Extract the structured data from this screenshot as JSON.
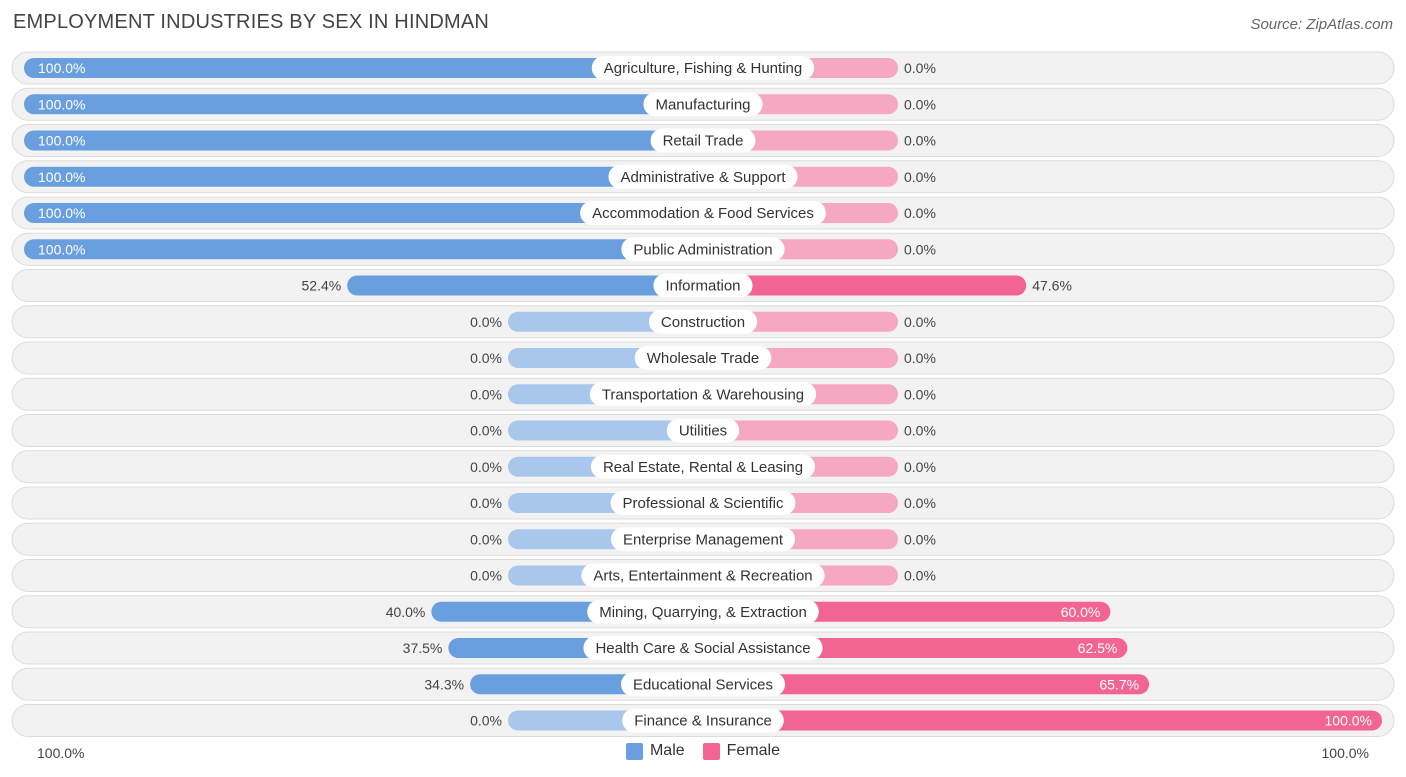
{
  "header": {
    "title": "EMPLOYMENT INDUSTRIES BY SEX IN HINDMAN",
    "source": "Source: ZipAtlas.com"
  },
  "colors": {
    "male_strong": "#6a9fdf",
    "male_light": "#a9c7ec",
    "female_strong": "#f26593",
    "female_light": "#f6a7c1",
    "row_bg": "#f2f2f2",
    "row_border": "#dcdcdc"
  },
  "chart_data": {
    "type": "bar",
    "orientation": "horizontal-diverging",
    "title": "EMPLOYMENT INDUSTRIES BY SEX IN HINDMAN",
    "categories": [
      "Agriculture, Fishing & Hunting",
      "Manufacturing",
      "Retail Trade",
      "Administrative & Support",
      "Accommodation & Food Services",
      "Public Administration",
      "Information",
      "Construction",
      "Wholesale Trade",
      "Transportation & Warehousing",
      "Utilities",
      "Real Estate, Rental & Leasing",
      "Professional & Scientific",
      "Enterprise Management",
      "Arts, Entertainment & Recreation",
      "Mining, Quarrying, & Extraction",
      "Health Care & Social Assistance",
      "Educational Services",
      "Finance & Insurance"
    ],
    "series": [
      {
        "name": "Male",
        "values": [
          100.0,
          100.0,
          100.0,
          100.0,
          100.0,
          100.0,
          52.4,
          0.0,
          0.0,
          0.0,
          0.0,
          0.0,
          0.0,
          0.0,
          0.0,
          40.0,
          37.5,
          34.3,
          0.0
        ],
        "labels": [
          "100.0%",
          "100.0%",
          "100.0%",
          "100.0%",
          "100.0%",
          "100.0%",
          "52.4%",
          "0.0%",
          "0.0%",
          "0.0%",
          "0.0%",
          "0.0%",
          "0.0%",
          "0.0%",
          "0.0%",
          "40.0%",
          "37.5%",
          "34.3%",
          "0.0%"
        ]
      },
      {
        "name": "Female",
        "values": [
          0.0,
          0.0,
          0.0,
          0.0,
          0.0,
          0.0,
          47.6,
          0.0,
          0.0,
          0.0,
          0.0,
          0.0,
          0.0,
          0.0,
          0.0,
          60.0,
          62.5,
          65.7,
          100.0
        ],
        "labels": [
          "0.0%",
          "0.0%",
          "0.0%",
          "0.0%",
          "0.0%",
          "0.0%",
          "47.6%",
          "0.0%",
          "0.0%",
          "0.0%",
          "0.0%",
          "0.0%",
          "0.0%",
          "0.0%",
          "0.0%",
          "60.0%",
          "62.5%",
          "65.7%",
          "100.0%"
        ]
      }
    ],
    "xlim": [
      0,
      100
    ],
    "axis_labels": {
      "left": "100.0%",
      "right": "100.0%"
    },
    "legend": {
      "position": "bottom-center",
      "entries": [
        "Male",
        "Female"
      ]
    },
    "grid": false
  }
}
